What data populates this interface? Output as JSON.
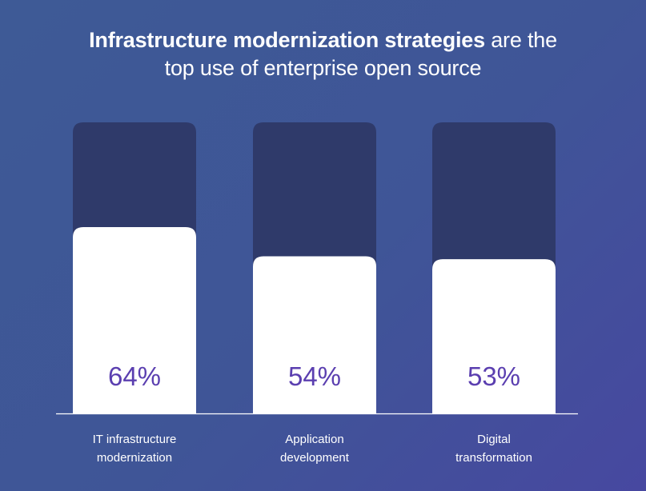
{
  "title": {
    "emphasis": "Infrastructure modernization strategies",
    "rest": " are the",
    "line2": "top use of enterprise open source"
  },
  "colors": {
    "background_start": "#3e5a96",
    "background_end": "#4748a0",
    "track": "#2f3a6a",
    "bar": "#ffffff",
    "value_text": "#5b3fb0",
    "baseline": "#ffffff"
  },
  "chart_data": {
    "type": "bar",
    "categories": [
      [
        "IT infrastructure",
        "modernization"
      ],
      [
        "Application",
        "development"
      ],
      [
        "Digital",
        "transformation"
      ]
    ],
    "values": [
      64,
      54,
      53
    ],
    "value_labels": [
      "64%",
      "54%",
      "53%"
    ],
    "ylim": [
      0,
      100
    ],
    "grid": false,
    "legend": "none"
  }
}
